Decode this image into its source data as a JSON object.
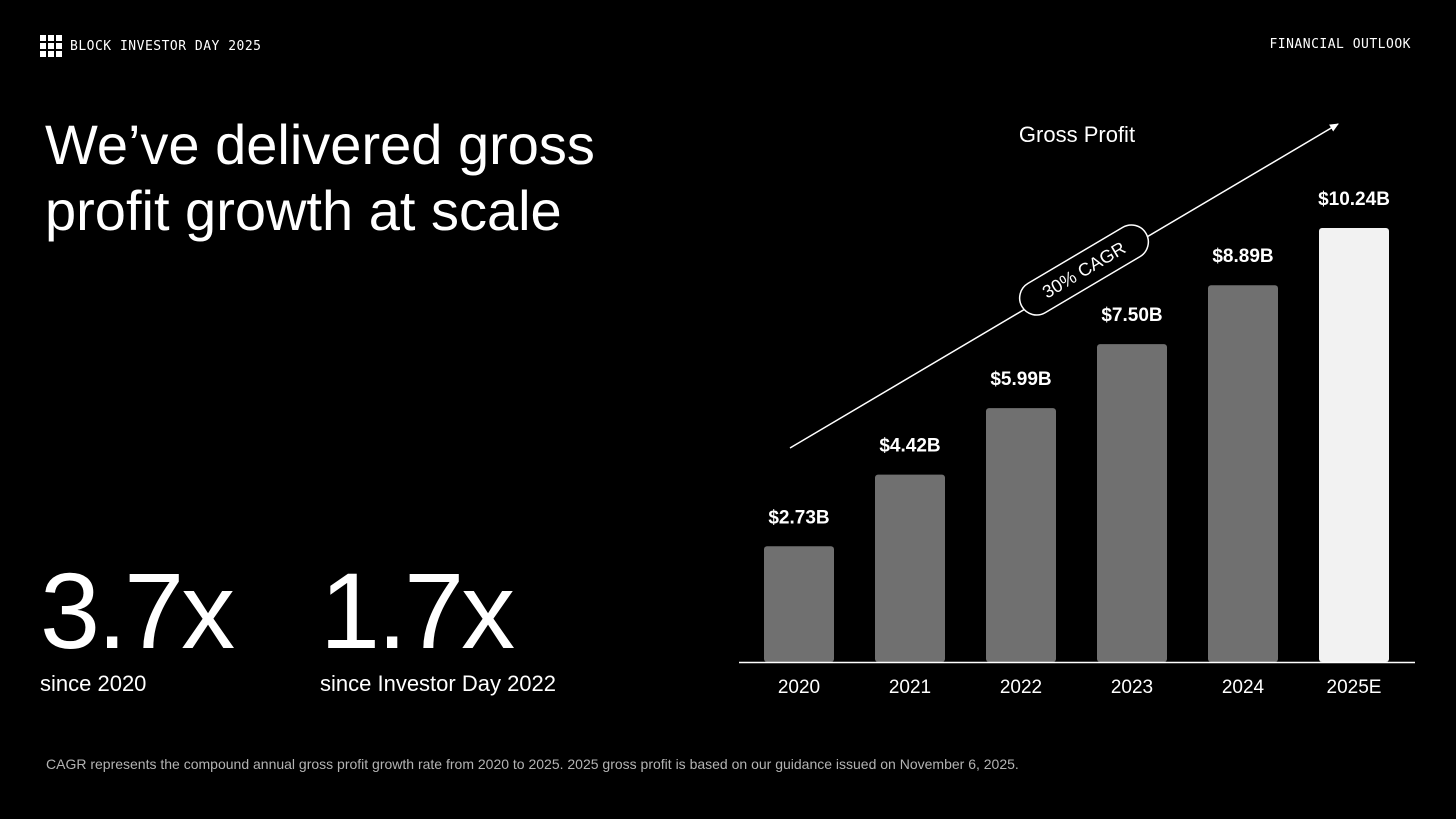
{
  "header": {
    "brand": "BLOCK INVESTOR DAY 2025",
    "section": "FINANCIAL OUTLOOK"
  },
  "title": "We’ve delivered gross profit growth at scale",
  "stats": [
    {
      "value": "3.7x",
      "label": "since 2020"
    },
    {
      "value": "1.7x",
      "label": "since Investor Day 2022"
    }
  ],
  "footnote": "CAGR represents the compound annual gross profit growth rate from 2020 to 2025. 2025 gross profit is based on our guidance issued on November 6, 2025.",
  "colors": {
    "background": "#000000",
    "bar": "#707070",
    "bar_highlight": "#f2f2f2",
    "text": "#ffffff",
    "footnote": "#b3b3b3"
  },
  "chart_data": {
    "type": "bar",
    "title": "Gross Profit",
    "categories": [
      "2020",
      "2021",
      "2022",
      "2023",
      "2024",
      "2025E"
    ],
    "values": [
      2.73,
      4.42,
      5.99,
      7.5,
      8.89,
      10.24
    ],
    "labels": [
      "$2.73B",
      "$4.42B",
      "$5.99B",
      "$7.50B",
      "$8.89B",
      "$10.24B"
    ],
    "highlight_index": 5,
    "annotation": "30% CAGR",
    "ylim": [
      0,
      11
    ],
    "grid": false,
    "xlabel": "",
    "ylabel": ""
  }
}
